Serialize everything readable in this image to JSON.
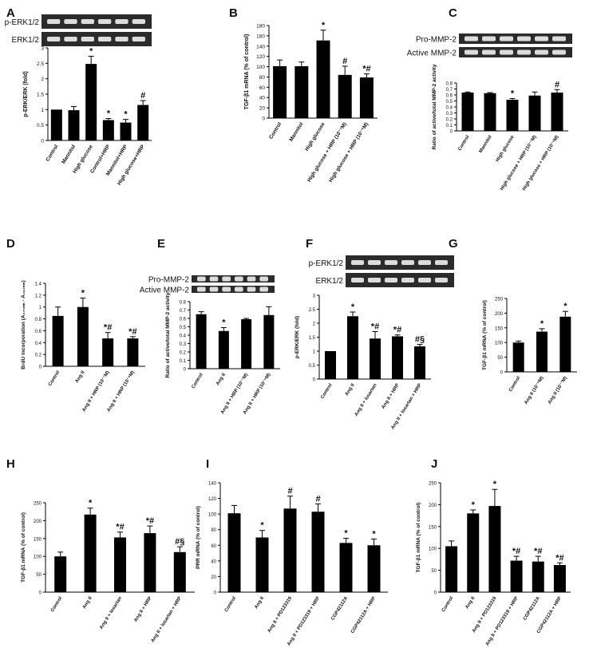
{
  "figure": {
    "panel_letters": [
      "A",
      "B",
      "C",
      "D",
      "E",
      "F",
      "G",
      "H",
      "I",
      "J"
    ]
  },
  "chart_data": [
    {
      "panel": "A",
      "type": "bar",
      "blot": {
        "bands": [
          "p-ERK1/2",
          "ERK1/2"
        ]
      },
      "ylabel": "p-ERK/ERK (fold)",
      "ylim": [
        0,
        3
      ],
      "yticks": [
        "0",
        "0.5",
        "1",
        "1.5",
        "2",
        "2.5",
        "3"
      ],
      "categories": [
        "Control",
        "Mannitol",
        "High glucose",
        "Control+HRP",
        "Mannitol+HRP",
        "High glucose+HRP"
      ],
      "values": [
        1.0,
        0.98,
        2.48,
        0.66,
        0.58,
        1.15
      ],
      "errors": [
        0.0,
        0.12,
        0.25,
        0.05,
        0.1,
        0.14
      ],
      "marks": [
        "",
        "",
        "*",
        "*",
        "*",
        "#"
      ]
    },
    {
      "panel": "B",
      "type": "bar",
      "ylabel": "TGF-β1 mRNA (% of control)",
      "ylim": [
        0,
        180
      ],
      "yticks": [
        "0",
        "20",
        "40",
        "60",
        "80",
        "100",
        "120",
        "140",
        "160",
        "180"
      ],
      "categories": [
        "Control",
        "Mannitol",
        "High glucose",
        "High glucose + HRP (10⁻⁷M)",
        "High glucose + HRP (10⁻⁶M)"
      ],
      "values": [
        101,
        101,
        151,
        84,
        79
      ],
      "errors": [
        12,
        8,
        20,
        17,
        7
      ],
      "marks": [
        "",
        "",
        "*",
        "#",
        "*#"
      ]
    },
    {
      "panel": "C",
      "type": "bar",
      "blot": {
        "bands": [
          "Pro-MMP-2",
          "Active MMP-2"
        ]
      },
      "ylabel": "Ratio of active/total MMP-2 activity",
      "ylim": [
        0,
        0.8
      ],
      "yticks": [
        "0",
        "0.1",
        "0.2",
        "0.3",
        "0.4",
        "0.5",
        "0.6",
        "0.7",
        "0.8"
      ],
      "categories": [
        "Control",
        "Mannitol",
        "High glucose",
        "High glucose + HRP (10⁻⁷M)",
        "High glucose + HRP (10⁻⁶M)"
      ],
      "values": [
        0.64,
        0.63,
        0.52,
        0.59,
        0.64
      ],
      "errors": [
        0.01,
        0.01,
        0.02,
        0.06,
        0.05
      ],
      "marks": [
        "",
        "",
        "*",
        "",
        "#"
      ]
    },
    {
      "panel": "D",
      "type": "bar",
      "ylabel": "BrdU incorporation (A₃₇₀ₙₘ - A₄₉₂ₙₘ)",
      "ylim": [
        0,
        1.4
      ],
      "yticks": [
        "0",
        "0.2",
        "0.4",
        "0.6",
        "0.8",
        "1",
        "1.2",
        "1.4"
      ],
      "categories": [
        "Control",
        "Ang II",
        "Ang II + HRP (10⁻⁷M)",
        "Ang II + HRP (10⁻⁶M)"
      ],
      "values": [
        0.85,
        1.0,
        0.47,
        0.47
      ],
      "errors": [
        0.15,
        0.15,
        0.1,
        0.03
      ],
      "marks": [
        "",
        "*",
        "*#",
        "*#"
      ]
    },
    {
      "panel": "E",
      "type": "bar",
      "blot": {
        "bands": [
          "Pro-MMP-2",
          "Active MMP-2"
        ]
      },
      "ylabel": "Ratio of active/total MMP-2 activity",
      "ylim": [
        0,
        0.8
      ],
      "yticks": [
        "0",
        "0.1",
        "0.2",
        "0.3",
        "0.4",
        "0.5",
        "0.6",
        "0.7",
        "0.8"
      ],
      "categories": [
        "Control",
        "Ang II",
        "Ang II + HRP (10⁻⁷M)",
        "Ang II + HRP (10⁻⁶M)"
      ],
      "values": [
        0.65,
        0.45,
        0.59,
        0.64
      ],
      "errors": [
        0.03,
        0.04,
        0.01,
        0.1
      ],
      "marks": [
        "",
        "*",
        "",
        ""
      ]
    },
    {
      "panel": "F",
      "type": "bar",
      "blot": {
        "bands": [
          "p-ERK1/2",
          "ERK1/2"
        ]
      },
      "ylabel": "p-ERK/ERK (fold)",
      "ylim": [
        0,
        3
      ],
      "yticks": [
        "0",
        "0.5",
        "1",
        "1.5",
        "2",
        "2.5",
        "3"
      ],
      "categories": [
        "Control",
        "Ang II",
        "Ang II + losartan",
        "Ang II + HRP",
        "Ang II + losartan + HRP"
      ],
      "values": [
        1.0,
        2.25,
        1.45,
        1.53,
        1.17
      ],
      "errors": [
        0.0,
        0.15,
        0.25,
        0.05,
        0.07
      ],
      "marks": [
        "",
        "*",
        "*#",
        "*#",
        "#§"
      ]
    },
    {
      "panel": "G",
      "type": "bar",
      "ylabel": "TGF-β1 mRNA (% of control)",
      "ylim": [
        0,
        250
      ],
      "yticks": [
        "0",
        "50",
        "100",
        "150",
        "200",
        "250"
      ],
      "categories": [
        "Control",
        "Ang II (10⁻⁸M)",
        "Ang II (10⁻⁷M)"
      ],
      "values": [
        100,
        137,
        188
      ],
      "errors": [
        5,
        10,
        18
      ],
      "marks": [
        "",
        "*",
        "*"
      ]
    },
    {
      "panel": "H",
      "type": "bar",
      "ylabel": "TGF-β1 mRNA (% of control)",
      "ylim": [
        0,
        250
      ],
      "yticks": [
        "0",
        "50",
        "100",
        "150",
        "200",
        "250"
      ],
      "categories": [
        "Control",
        "Ang II",
        "Ang II + losartan",
        "Ang II + HRP",
        "Ang II + losartan + HRP"
      ],
      "values": [
        100,
        217,
        153,
        165,
        112
      ],
      "errors": [
        12,
        18,
        15,
        20,
        15
      ],
      "marks": [
        "",
        "*",
        "*#",
        "*#",
        "#§"
      ]
    },
    {
      "panel": "I",
      "type": "bar",
      "ylabel": "PRR mRNA (% of control)",
      "ylim": [
        0,
        140
      ],
      "yticks": [
        "0",
        "20",
        "40",
        "60",
        "80",
        "100",
        "120",
        "140"
      ],
      "categories": [
        "Control",
        "Ang II",
        "Ang II + PD123319",
        "Ang II + PD123319 + HRP",
        "CGP42112A",
        "CGP42112A + HRP"
      ],
      "values": [
        101,
        70,
        107,
        103,
        63,
        60
      ],
      "errors": [
        10,
        9,
        16,
        10,
        6,
        8
      ],
      "marks": [
        "",
        "*",
        "#",
        "#",
        "*",
        "*"
      ]
    },
    {
      "panel": "J",
      "type": "bar",
      "ylabel": "TGF-β1 mRNA (% of control)",
      "ylim": [
        0,
        250
      ],
      "yticks": [
        "0",
        "50",
        "100",
        "150",
        "200",
        "250"
      ],
      "categories": [
        "Control",
        "Ang II",
        "Ang II + PD123319",
        "Ang II + PD123319 + HRP",
        "CGP42112A",
        "CGP42112A + HRP"
      ],
      "values": [
        105,
        180,
        197,
        72,
        70,
        62
      ],
      "errors": [
        12,
        8,
        38,
        10,
        12,
        5
      ],
      "marks": [
        "",
        "*",
        "*",
        "*#",
        "*#",
        "*#"
      ]
    }
  ]
}
